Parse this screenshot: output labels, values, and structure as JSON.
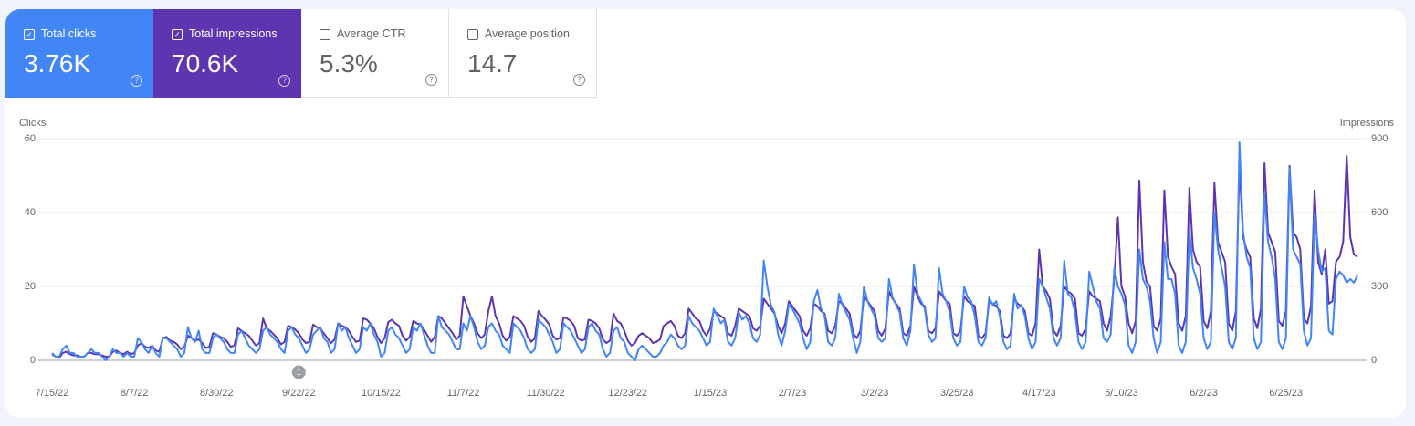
{
  "metrics": [
    {
      "label": "Total clicks",
      "value": "3.76K",
      "checked": true,
      "color": "#4285f4"
    },
    {
      "label": "Total impressions",
      "value": "70.6K",
      "checked": true,
      "color": "#5e35b1"
    },
    {
      "label": "Average CTR",
      "value": "5.3%",
      "checked": false,
      "color": "#ffffff"
    },
    {
      "label": "Average position",
      "value": "14.7",
      "checked": false,
      "color": "#ffffff"
    }
  ],
  "chart_data": {
    "type": "line",
    "ylabel": "Clicks",
    "y2label": "Impressions",
    "ylim": [
      0,
      60
    ],
    "yticks": [
      0,
      20,
      40,
      60
    ],
    "y2lim": [
      0,
      900
    ],
    "y2ticks": [
      0,
      300,
      600,
      900
    ],
    "grid": true,
    "annotations": [
      {
        "x": "9/22/22",
        "label": "1"
      }
    ],
    "x": [
      "7/15/22",
      null,
      null,
      null,
      null,
      null,
      null,
      null,
      null,
      null,
      null,
      null,
      null,
      null,
      null,
      null,
      null,
      null,
      null,
      null,
      null,
      null,
      null,
      "8/7/22",
      null,
      null,
      null,
      null,
      null,
      null,
      null,
      null,
      null,
      null,
      null,
      null,
      null,
      null,
      null,
      null,
      null,
      null,
      null,
      null,
      null,
      null,
      "8/30/22",
      null,
      null,
      null,
      null,
      null,
      null,
      null,
      null,
      null,
      null,
      null,
      null,
      null,
      null,
      null,
      null,
      null,
      null,
      null,
      null,
      null,
      null,
      "9/22/22",
      null,
      null,
      null,
      null,
      null,
      null,
      null,
      null,
      null,
      null,
      null,
      null,
      null,
      null,
      null,
      null,
      null,
      null,
      null,
      null,
      null,
      null,
      "10/15/22",
      null,
      null,
      null,
      null,
      null,
      null,
      null,
      null,
      null,
      null,
      null,
      null,
      null,
      null,
      null,
      null,
      null,
      null,
      null,
      null,
      null,
      null,
      "11/7/22",
      null,
      null,
      null,
      null,
      null,
      null,
      null,
      null,
      null,
      null,
      null,
      null,
      null,
      null,
      null,
      null,
      null,
      null,
      null,
      null,
      null,
      null,
      "11/30/22",
      null,
      null,
      null,
      null,
      null,
      null,
      null,
      null,
      null,
      null,
      null,
      null,
      null,
      null,
      null,
      null,
      null,
      null,
      null,
      null,
      null,
      null,
      "12/23/22",
      null,
      null,
      null,
      null,
      null,
      null,
      null,
      null,
      null,
      null,
      null,
      null,
      null,
      null,
      null,
      null,
      null,
      null,
      null,
      null,
      null,
      null,
      "1/15/23",
      null,
      null,
      null,
      null,
      null,
      null,
      null,
      null,
      null,
      null,
      null,
      null,
      null,
      null,
      null,
      null,
      null,
      null,
      null,
      null,
      null,
      null,
      "2/7/23",
      null,
      null,
      null,
      null,
      null,
      null,
      null,
      null,
      null,
      null,
      null,
      null,
      null,
      null,
      null,
      null,
      null,
      null,
      null,
      null,
      null,
      null,
      "3/2/23",
      null,
      null,
      null,
      null,
      null,
      null,
      null,
      null,
      null,
      null,
      null,
      null,
      null,
      null,
      null,
      null,
      null,
      null,
      null,
      null,
      null,
      null,
      "3/25/23",
      null,
      null,
      null,
      null,
      null,
      null,
      null,
      null,
      null,
      null,
      null,
      null,
      null,
      null,
      null,
      null,
      null,
      null,
      null,
      null,
      null,
      null,
      "4/17/23",
      null,
      null,
      null,
      null,
      null,
      null,
      null,
      null,
      null,
      null,
      null,
      null,
      null,
      null,
      null,
      null,
      null,
      null,
      null,
      null,
      null,
      null,
      "5/10/23",
      null,
      null,
      null,
      null,
      null,
      null,
      null,
      null,
      null,
      null,
      null,
      null,
      null,
      null,
      null,
      null,
      null,
      null,
      null,
      null,
      null,
      null,
      "6/2/23",
      null,
      null,
      null,
      null,
      null,
      null,
      null,
      null,
      null,
      null,
      null,
      null,
      null,
      null,
      null,
      null,
      null,
      null,
      null,
      null,
      null,
      null,
      "6/25/23",
      null,
      null,
      null,
      null,
      null,
      null,
      null,
      null,
      null,
      null,
      null,
      null,
      null,
      null,
      null,
      null,
      null,
      null,
      null,
      null
    ],
    "series": [
      {
        "color": "#4285f4",
        "values": [
          2,
          1,
          1,
          3,
          4,
          2,
          2,
          1,
          1,
          1,
          2,
          3,
          2,
          2,
          1,
          0,
          1,
          3,
          2,
          2,
          1,
          2,
          1,
          1,
          6,
          5,
          3,
          2,
          4,
          2,
          1,
          6,
          6,
          5,
          4,
          3,
          1,
          2,
          9,
          6,
          5,
          8,
          3,
          2,
          2,
          6,
          7,
          6,
          5,
          3,
          2,
          2,
          7,
          8,
          6,
          4,
          3,
          2,
          3,
          8,
          9,
          7,
          6,
          5,
          3,
          2,
          8,
          9,
          7,
          6,
          4,
          2,
          3,
          7,
          8,
          9,
          6,
          5,
          2,
          3,
          10,
          8,
          9,
          6,
          4,
          2,
          3,
          9,
          8,
          10,
          7,
          5,
          1,
          2,
          8,
          9,
          7,
          6,
          4,
          2,
          3,
          9,
          8,
          10,
          7,
          4,
          2,
          2,
          12,
          9,
          8,
          7,
          5,
          3,
          3,
          10,
          8,
          12,
          9,
          5,
          3,
          4,
          9,
          10,
          8,
          7,
          4,
          3,
          2,
          10,
          9,
          8,
          6,
          3,
          2,
          3,
          11,
          10,
          9,
          7,
          5,
          2,
          3,
          10,
          9,
          8,
          6,
          4,
          2,
          3,
          9,
          10,
          8,
          7,
          3,
          1,
          2,
          8,
          9,
          6,
          5,
          2,
          1,
          0,
          3,
          4,
          3,
          2,
          1,
          1,
          2,
          4,
          5,
          7,
          6,
          4,
          3,
          4,
          12,
          10,
          9,
          8,
          6,
          4,
          5,
          14,
          12,
          10,
          11,
          5,
          4,
          6,
          13,
          11,
          12,
          10,
          6,
          5,
          7,
          27,
          20,
          15,
          13,
          7,
          4,
          8,
          15,
          14,
          12,
          10,
          6,
          3,
          5,
          16,
          19,
          14,
          12,
          5,
          4,
          6,
          18,
          15,
          13,
          11,
          6,
          2,
          5,
          20,
          16,
          14,
          12,
          6,
          5,
          6,
          22,
          17,
          15,
          13,
          6,
          4,
          8,
          26,
          18,
          16,
          14,
          7,
          5,
          6,
          25,
          18,
          16,
          13,
          6,
          4,
          5,
          20,
          17,
          16,
          12,
          5,
          4,
          6,
          17,
          15,
          16,
          12,
          5,
          3,
          4,
          18,
          14,
          15,
          12,
          6,
          3,
          5,
          22,
          20,
          17,
          14,
          6,
          4,
          6,
          27,
          18,
          17,
          13,
          5,
          3,
          5,
          24,
          20,
          16,
          14,
          6,
          5,
          7,
          25,
          20,
          18,
          15,
          4,
          2,
          5,
          30,
          22,
          20,
          16,
          6,
          2,
          5,
          32,
          22,
          22,
          18,
          4,
          2,
          5,
          35,
          25,
          22,
          18,
          6,
          3,
          5,
          40,
          30,
          25,
          20,
          5,
          3,
          6,
          59,
          35,
          28,
          25,
          6,
          3,
          5,
          45,
          32,
          28,
          22,
          5,
          3,
          6,
          52,
          30,
          28,
          26,
          8,
          4,
          6,
          40,
          30,
          24,
          25,
          8,
          7,
          22,
          24,
          23,
          21,
          22,
          21,
          23
        ]
      },
      {
        "color": "#5e35b1",
        "axis": "y2",
        "values": [
          25,
          15,
          10,
          30,
          35,
          25,
          20,
          20,
          15,
          15,
          30,
          30,
          25,
          25,
          20,
          15,
          15,
          35,
          40,
          30,
          25,
          35,
          25,
          30,
          60,
          70,
          55,
          50,
          60,
          40,
          35,
          90,
          95,
          80,
          75,
          65,
          45,
          55,
          100,
          90,
          80,
          85,
          70,
          50,
          55,
          110,
          105,
          95,
          90,
          75,
          55,
          60,
          130,
          120,
          110,
          100,
          80,
          60,
          70,
          170,
          130,
          120,
          105,
          90,
          65,
          75,
          140,
          135,
          125,
          110,
          85,
          70,
          75,
          145,
          135,
          130,
          110,
          90,
          70,
          85,
          150,
          140,
          135,
          120,
          95,
          75,
          80,
          170,
          165,
          150,
          130,
          95,
          70,
          90,
          155,
          165,
          150,
          140,
          100,
          80,
          95,
          160,
          150,
          145,
          125,
          100,
          75,
          95,
          180,
          170,
          150,
          130,
          110,
          85,
          100,
          260,
          220,
          180,
          150,
          110,
          90,
          105,
          200,
          260,
          180,
          150,
          100,
          80,
          95,
          180,
          170,
          160,
          140,
          95,
          75,
          90,
          200,
          180,
          165,
          145,
          100,
          85,
          90,
          175,
          170,
          160,
          140,
          90,
          80,
          85,
          165,
          160,
          150,
          130,
          85,
          70,
          80,
          190,
          160,
          150,
          120,
          80,
          60,
          70,
          100,
          110,
          100,
          90,
          70,
          75,
          85,
          140,
          150,
          160,
          140,
          100,
          90,
          110,
          210,
          190,
          170,
          160,
          120,
          100,
          130,
          200,
          190,
          180,
          170,
          110,
          100,
          140,
          210,
          200,
          190,
          180,
          130,
          120,
          140,
          250,
          230,
          210,
          190,
          140,
          110,
          150,
          240,
          220,
          200,
          180,
          120,
          100,
          130,
          230,
          220,
          200,
          190,
          120,
          110,
          140,
          240,
          230,
          210,
          190,
          110,
          90,
          120,
          260,
          240,
          220,
          200,
          120,
          100,
          130,
          280,
          250,
          230,
          210,
          110,
          100,
          140,
          300,
          260,
          230,
          220,
          120,
          110,
          130,
          280,
          260,
          240,
          230,
          110,
          100,
          120,
          260,
          240,
          230,
          220,
          100,
          90,
          110,
          240,
          230,
          220,
          200,
          100,
          90,
          110,
          250,
          230,
          220,
          200,
          110,
          100,
          150,
          450,
          300,
          280,
          250,
          120,
          100,
          140,
          300,
          280,
          270,
          250,
          110,
          100,
          130,
          280,
          260,
          250,
          240,
          150,
          120,
          180,
          330,
          580,
          300,
          260,
          150,
          110,
          160,
          730,
          400,
          320,
          300,
          140,
          120,
          170,
          690,
          420,
          380,
          350,
          150,
          120,
          180,
          700,
          450,
          400,
          380,
          160,
          130,
          200,
          720,
          480,
          440,
          400,
          150,
          120,
          200,
          800,
          500,
          450,
          420,
          170,
          130,
          210,
          800,
          520,
          480,
          440,
          160,
          140,
          200,
          790,
          520,
          500,
          450,
          170,
          150,
          220,
          690,
          400,
          350,
          450,
          230,
          240,
          400,
          420,
          480,
          830,
          500,
          430,
          420
        ]
      }
    ]
  }
}
